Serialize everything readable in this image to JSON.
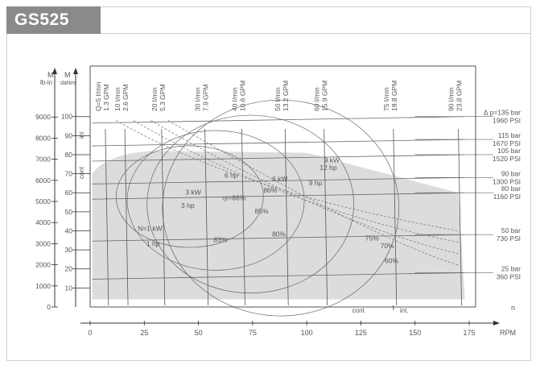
{
  "model": "GS525",
  "chart_data": {
    "type": "line",
    "title": "",
    "xlabel": "RPM",
    "x_ticks": [
      0,
      25,
      50,
      75,
      100,
      125,
      150,
      175
    ],
    "xlim": [
      0,
      180
    ],
    "y_unit_left": "M",
    "y_unit_left_sub": "lb-in",
    "y_unit_right": "M",
    "y_unit_right_sub": "daNm",
    "y_ticks_lbin": [
      "0",
      "1000",
      "2000",
      "3000",
      "4000",
      "5000",
      "6000",
      "7000",
      "8000",
      "9000"
    ],
    "y_ticks_daNm": [
      10,
      20,
      30,
      40,
      50,
      60,
      70,
      80,
      90,
      100
    ],
    "ylim_daNm": [
      0,
      105
    ],
    "zone_int_label": "int",
    "zone_cont_label": "cont",
    "speed_range_labels": {
      "cont": "cont",
      "int": "int.",
      "n": "n"
    },
    "flow_lines": [
      {
        "lpm": "Q=5 l/min",
        "gpm": "1.3 GPM",
        "rpm": 7
      },
      {
        "lpm": "10 l/min",
        "gpm": "2.6 GPM",
        "rpm": 16
      },
      {
        "lpm": "20 l/min",
        "gpm": "5.3 GPM",
        "rpm": 33
      },
      {
        "lpm": "30 l/min",
        "gpm": "7.9 GPM",
        "rpm": 53
      },
      {
        "lpm": "40 l/min",
        "gpm": "10.6 GPM",
        "rpm": 70
      },
      {
        "lpm": "50 l/min",
        "gpm": "13.2 GPM",
        "rpm": 90
      },
      {
        "lpm": "60 l/min",
        "gpm": "15.9 GPM",
        "rpm": 108
      },
      {
        "lpm": "75 l/min",
        "gpm": "19.8 GPM",
        "rpm": 140
      },
      {
        "lpm": "90 l/min",
        "gpm": "23.8 GPM",
        "rpm": 170
      }
    ],
    "pressure_lines": [
      {
        "bar": "Δ p=135 bar",
        "psi": "1960 PSI",
        "torque": 100
      },
      {
        "bar": "115 bar",
        "psi": "1670 PSI",
        "torque": 88
      },
      {
        "bar": "105 bar",
        "psi": "1520 PSI",
        "torque": 80
      },
      {
        "bar": "90 bar",
        "psi": "1300 PSI",
        "torque": 68
      },
      {
        "bar": "80 bar",
        "psi": "1160 PSI",
        "torque": 60
      },
      {
        "bar": "50 bar",
        "psi": "730 PSI",
        "torque": 38
      },
      {
        "bar": "25 bar",
        "psi": "360 PSI",
        "torque": 18
      }
    ],
    "annotations": [
      {
        "text": "9 kW",
        "rpm": 108,
        "torque": 76
      },
      {
        "text": "12 hp",
        "rpm": 106,
        "torque": 72
      },
      {
        "text": "6 hp",
        "rpm": 62,
        "torque": 68
      },
      {
        "text": "6 kW",
        "rpm": 84,
        "torque": 66
      },
      {
        "text": "9 hp",
        "rpm": 101,
        "torque": 64
      },
      {
        "text": "3 kW",
        "rpm": 44,
        "torque": 59
      },
      {
        "text": "ηt=88%",
        "rpm": 61,
        "torque": 56
      },
      {
        "text": "86%",
        "rpm": 80,
        "torque": 60
      },
      {
        "text": "3 hp",
        "rpm": 42,
        "torque": 52
      },
      {
        "text": "85%",
        "rpm": 76,
        "torque": 49
      },
      {
        "text": "N=1 kW",
        "rpm": 22,
        "torque": 40
      },
      {
        "text": "80%",
        "rpm": 84,
        "torque": 37
      },
      {
        "text": "83%",
        "rpm": 57,
        "torque": 34
      },
      {
        "text": "1 hp",
        "rpm": 26,
        "torque": 32
      },
      {
        "text": "75%",
        "rpm": 127,
        "torque": 35
      },
      {
        "text": "70%",
        "rpm": 134,
        "torque": 31
      },
      {
        "text": "60%",
        "rpm": 136,
        "torque": 23
      }
    ]
  }
}
